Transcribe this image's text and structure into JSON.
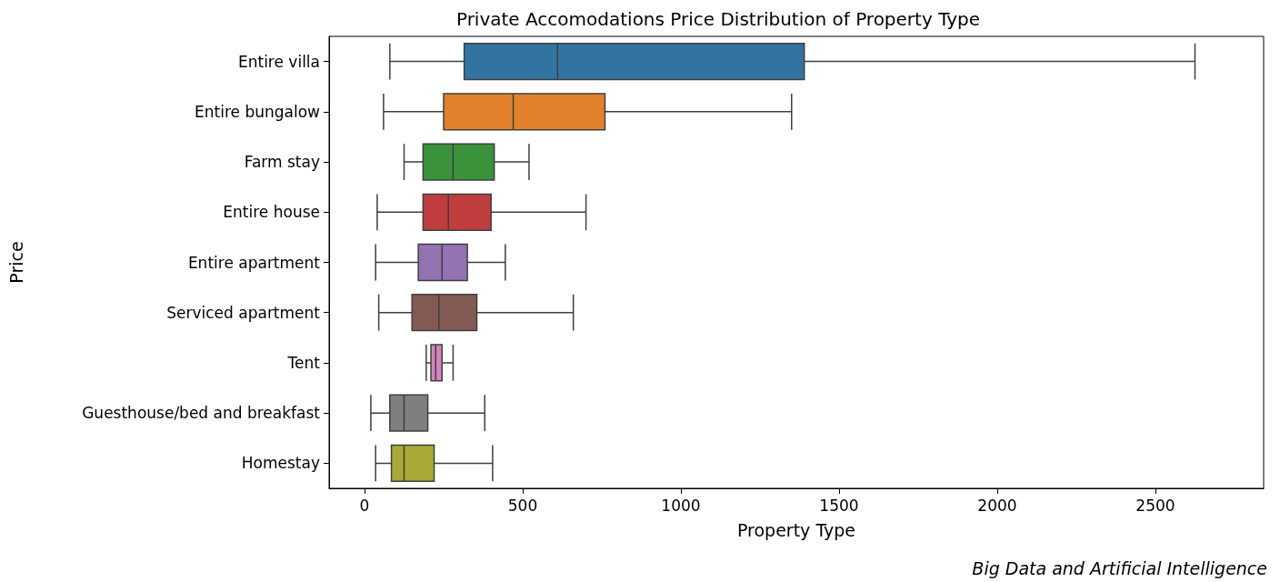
{
  "chart_data": {
    "type": "box",
    "orientation": "horizontal",
    "title": "Private Accomodations Price Distribution of Property Type",
    "xlabel": "Property Type",
    "ylabel": "Price",
    "categories": [
      "Entire villa",
      "Entire bungalow",
      "Farm stay",
      "Entire house",
      "Entire apartment",
      "Serviced apartment",
      "Tent",
      "Guesthouse/bed and breakfast",
      "Homestay"
    ],
    "boxes": [
      {
        "low": 80,
        "q1": 315,
        "median": 610,
        "q3": 1390,
        "high": 2625
      },
      {
        "low": 60,
        "q1": 250,
        "median": 470,
        "q3": 760,
        "high": 1350
      },
      {
        "low": 125,
        "q1": 185,
        "median": 280,
        "q3": 410,
        "high": 520
      },
      {
        "low": 40,
        "q1": 185,
        "median": 265,
        "q3": 400,
        "high": 700
      },
      {
        "low": 35,
        "q1": 170,
        "median": 245,
        "q3": 325,
        "high": 445
      },
      {
        "low": 45,
        "q1": 150,
        "median": 235,
        "q3": 355,
        "high": 660
      },
      {
        "low": 195,
        "q1": 210,
        "median": 225,
        "q3": 245,
        "high": 280
      },
      {
        "low": 20,
        "q1": 80,
        "median": 125,
        "q3": 200,
        "high": 380
      },
      {
        "low": 35,
        "q1": 85,
        "median": 125,
        "q3": 220,
        "high": 405
      }
    ],
    "colors": [
      "#3274a1",
      "#e1812c",
      "#3a923a",
      "#c03d3e",
      "#9372b2",
      "#845b53",
      "#d684bd",
      "#7f7f7f",
      "#a9aa35"
    ],
    "xlim": [
      -112,
      2842
    ],
    "xticks": [
      0,
      500,
      1000,
      1500,
      2000,
      2500
    ],
    "annotations": [
      "Big Data and Artificial Intelligence"
    ]
  }
}
